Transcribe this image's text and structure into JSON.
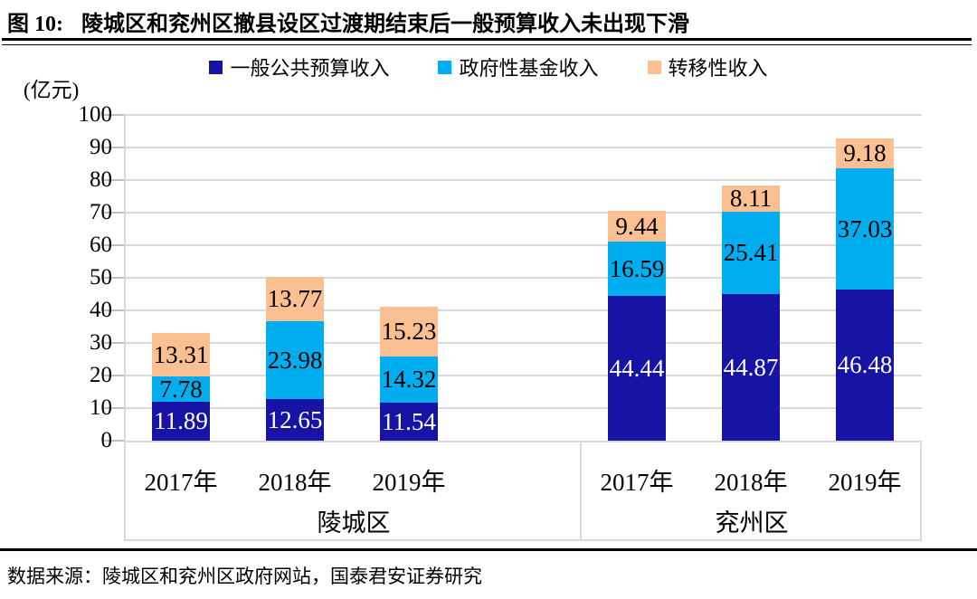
{
  "figure": {
    "label": "图 10:",
    "title": "陵城区和兖州区撤县设区过渡期结束后一般预算收入未出现下滑",
    "source": "数据来源：陵城区和兖州区政府网站，国泰君安证券研究"
  },
  "chart_data": {
    "type": "bar",
    "stacked": true,
    "title": "陵城区和兖州区撤县设区过渡期结束后一般预算收入未出现下滑",
    "unit_label": "(亿元)",
    "ylabel": "(亿元)",
    "ylim": [
      0,
      100
    ],
    "yticks": [
      0,
      10,
      20,
      30,
      40,
      50,
      60,
      70,
      80,
      90,
      100
    ],
    "grid": true,
    "legend_position": "top",
    "groups": [
      {
        "label": "陵城区",
        "categories": [
          "2017年",
          "2018年",
          "2019年"
        ]
      },
      {
        "label": "兖州区",
        "categories": [
          "2017年",
          "2018年",
          "2019年"
        ]
      }
    ],
    "series": [
      {
        "name": "一般公共预算收入",
        "color": "#1713A5",
        "label_color": "#FFFFFF",
        "values": [
          11.89,
          12.65,
          11.54,
          44.44,
          44.87,
          46.48
        ]
      },
      {
        "name": "政府性基金收入",
        "color": "#00AEEF",
        "label_color": "#000000",
        "values": [
          7.78,
          23.98,
          14.32,
          16.59,
          25.41,
          37.03
        ]
      },
      {
        "name": "转移性收入",
        "color": "#FAC092",
        "label_color": "#000000",
        "values": [
          13.31,
          13.77,
          15.23,
          9.44,
          8.11,
          9.18
        ]
      }
    ]
  },
  "colors": {
    "grid": "#D9D9D9",
    "tick": "#BFBFBF",
    "rule": "#000000",
    "background": "#FFFFFF"
  }
}
